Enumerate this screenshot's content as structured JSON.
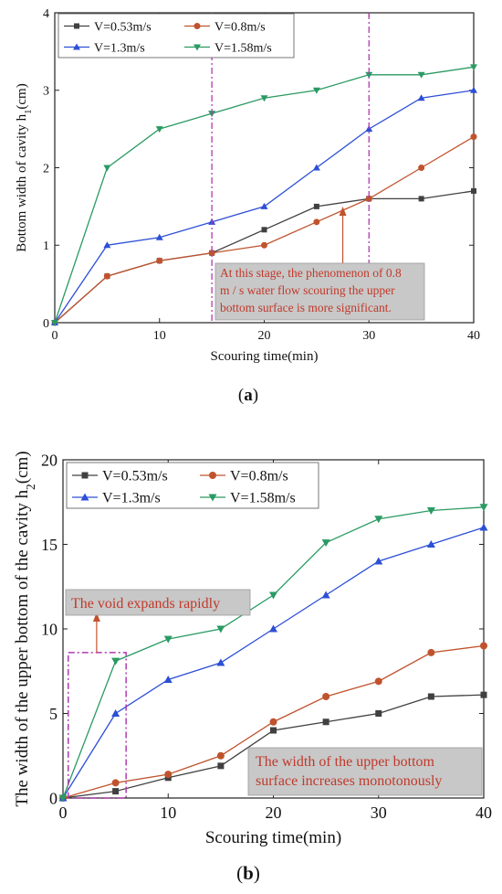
{
  "colors": {
    "s053": "#404040",
    "s08": "#c0532d",
    "s13": "#2d4fd6",
    "s158": "#2a9a63",
    "marker_line": "#b03ab0",
    "annotation_text": "#c0392b",
    "arrow": "#c0532d"
  },
  "chart_data": [
    {
      "panel": "(a)",
      "type": "line",
      "xlabel": "Scouring time(min)",
      "ylabel_main": "Bottom width of cavity h",
      "ylabel_sub": "1",
      "ylabel_unit": "(cm)",
      "xlim": [
        0,
        40
      ],
      "ylim": [
        0,
        4
      ],
      "xticks": [
        0,
        10,
        20,
        30,
        40
      ],
      "yticks": [
        0,
        1,
        2,
        3,
        4
      ],
      "x": [
        0,
        5,
        10,
        15,
        20,
        25,
        30,
        35,
        40
      ],
      "series": [
        {
          "name": "V=0.53m/s",
          "marker": "square",
          "color": "#404040",
          "values": [
            0,
            0.6,
            0.8,
            0.9,
            1.2,
            1.5,
            1.6,
            1.6,
            1.7
          ]
        },
        {
          "name": "V=0.8m/s",
          "marker": "circle",
          "color": "#c0532d",
          "values": [
            0,
            0.6,
            0.8,
            0.9,
            1.0,
            1.3,
            1.6,
            2.0,
            2.4
          ]
        },
        {
          "name": "V=1.3m/s",
          "marker": "triangle-up",
          "color": "#2d4fd6",
          "values": [
            0,
            1.0,
            1.1,
            1.3,
            1.5,
            2.0,
            2.5,
            2.9,
            3.0
          ]
        },
        {
          "name": "V=1.58m/s",
          "marker": "triangle-down",
          "color": "#2a9a63",
          "values": [
            0,
            2.0,
            2.5,
            2.7,
            2.9,
            3.0,
            3.2,
            3.2,
            3.3
          ]
        }
      ],
      "vertical_markers": [
        15,
        30
      ],
      "annotation": {
        "lines": [
          "At this stage, the phenomenon of 0.8",
          "m / s water flow scouring the upper",
          "bottom surface is more significant."
        ],
        "arrow_x": 27.5
      },
      "legend": "top-left, two columns"
    },
    {
      "panel": "(b)",
      "type": "line",
      "xlabel": "Scouring time(min)",
      "ylabel_main": "The width of the upper bottom of the cavity h",
      "ylabel_sub": "2",
      "ylabel_unit": "(cm)",
      "xlim": [
        0,
        40
      ],
      "ylim": [
        0,
        20
      ],
      "xticks": [
        0,
        10,
        20,
        30,
        40
      ],
      "yticks": [
        0,
        5,
        10,
        15,
        20
      ],
      "x": [
        0,
        5,
        10,
        15,
        20,
        25,
        30,
        35,
        40
      ],
      "series": [
        {
          "name": "V=0.53m/s",
          "marker": "square",
          "color": "#404040",
          "values": [
            0,
            0.4,
            1.2,
            1.9,
            4.0,
            4.5,
            5.0,
            6.0,
            6.1
          ]
        },
        {
          "name": "V=0.8m/s",
          "marker": "circle",
          "color": "#c0532d",
          "values": [
            0,
            0.9,
            1.4,
            2.5,
            4.5,
            6.0,
            6.9,
            8.6,
            9.0
          ]
        },
        {
          "name": "V=1.3m/s",
          "marker": "triangle-up",
          "color": "#2d4fd6",
          "values": [
            0,
            5.0,
            7.0,
            8.0,
            10.0,
            12.0,
            14.0,
            15.0,
            16.0
          ]
        },
        {
          "name": "V=1.58m/s",
          "marker": "triangle-down",
          "color": "#2a9a63",
          "values": [
            0,
            8.1,
            9.4,
            10.0,
            12.0,
            15.1,
            16.5,
            17.0,
            17.2
          ]
        }
      ],
      "annotations": [
        {
          "text": "The void expands rapidly"
        },
        {
          "lines": [
            "The width of the upper bottom",
            "surface increases monotonously"
          ]
        }
      ],
      "highlight_region": {
        "x": [
          0.5,
          6
        ],
        "y": [
          0,
          8.6
        ]
      },
      "legend": "top-left, two columns"
    }
  ],
  "captions": {
    "a": "(a)",
    "b": "(b)"
  }
}
